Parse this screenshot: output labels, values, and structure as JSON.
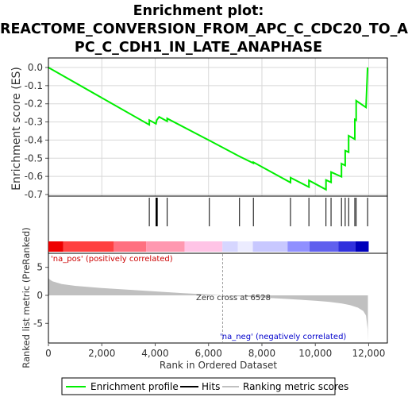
{
  "chart_data": {
    "type": "line",
    "title_lines": [
      "Enrichment plot:",
      "REACTOME_CONVERSION_FROM_APC_C_CDC20_TO_A",
      "PC_C_CDH1_IN_LATE_ANAPHASE"
    ],
    "es_panel": {
      "ylabel": "Enrichment score (ES)",
      "ylim": [
        -0.7,
        0.0
      ],
      "yticks": [
        "0.0",
        "-0.1",
        "-0.2",
        "-0.3",
        "-0.4",
        "-0.5",
        "-0.6",
        "-0.7"
      ],
      "ytick_values": [
        0.0,
        -0.1,
        -0.2,
        -0.3,
        -0.4,
        -0.5,
        -0.6,
        -0.7
      ],
      "grid": true,
      "line_color": "#00ee00",
      "series": [
        {
          "name": "Enrichment profile",
          "x": [
            0,
            3780,
            3780,
            4030,
            4060,
            4060,
            4150,
            4450,
            4450,
            6030,
            6030,
            7160,
            7160,
            7680,
            7680,
            9070,
            9070,
            9760,
            9760,
            10400,
            10400,
            10590,
            10590,
            10980,
            10980,
            11120,
            11120,
            11250,
            11250,
            11480,
            11480,
            11530,
            11530,
            11900,
            11900,
            11960
          ],
          "y": [
            0.0,
            -0.316,
            -0.29,
            -0.31,
            -0.29,
            -0.29,
            -0.272,
            -0.296,
            -0.281,
            -0.402,
            -0.402,
            -0.49,
            -0.49,
            -0.527,
            -0.522,
            -0.634,
            -0.607,
            -0.659,
            -0.622,
            -0.673,
            -0.62,
            -0.633,
            -0.576,
            -0.602,
            -0.53,
            -0.54,
            -0.458,
            -0.467,
            -0.376,
            -0.395,
            -0.286,
            -0.29,
            -0.183,
            -0.22,
            -0.22,
            0.0
          ]
        }
      ]
    },
    "hits": {
      "name": "Hits",
      "positions": [
        3780,
        4030,
        4060,
        4080,
        4450,
        6030,
        7160,
        7680,
        9070,
        9760,
        10400,
        10590,
        10980,
        11120,
        11250,
        11480,
        11530,
        11960
      ]
    },
    "ranking_bar": {
      "label_pos": "'na_pos' (positively correlated)",
      "label_neg": "'na_neg' (negatively correlated)",
      "label_pos_color": "#cc0000",
      "label_neg_color": "#0000cc",
      "segments": [
        {
          "from": 0,
          "to": 560,
          "color": "#ee0000"
        },
        {
          "from": 560,
          "to": 2450,
          "color": "#ff4040"
        },
        {
          "from": 2450,
          "to": 3660,
          "color": "#ff7080"
        },
        {
          "from": 3660,
          "to": 5100,
          "color": "#ff98b0"
        },
        {
          "from": 5100,
          "to": 6520,
          "color": "#ffc4e6"
        },
        {
          "from": 6520,
          "to": 7100,
          "color": "#d6d6ff"
        },
        {
          "from": 7100,
          "to": 7660,
          "color": "#ececff"
        },
        {
          "from": 7660,
          "to": 8960,
          "color": "#c8c8ff"
        },
        {
          "from": 8960,
          "to": 9780,
          "color": "#9090ff"
        },
        {
          "from": 9780,
          "to": 10870,
          "color": "#6060ee"
        },
        {
          "from": 10870,
          "to": 11500,
          "color": "#3030dd"
        },
        {
          "from": 11500,
          "to": 12000,
          "color": "#0000bb"
        }
      ]
    },
    "metric_panel": {
      "ylabel": "Ranked list metric (PreRanked)",
      "ylim": [
        -8.5,
        7.5
      ],
      "yticks": [
        "5",
        "0",
        "-5"
      ],
      "ytick_values": [
        5,
        0,
        -5
      ],
      "zero_cross_label": "Zero cross at 6528",
      "zero_cross": 6528,
      "fill_color": "#c0c0c0",
      "x": [
        0,
        30,
        150,
        500,
        1000,
        2000,
        3000,
        4000,
        5000,
        6000,
        6528,
        7000,
        8000,
        9000,
        10000,
        10500,
        11000,
        11300,
        11600,
        11800,
        11900,
        11960,
        11970
      ],
      "values": [
        3.3,
        2.9,
        2.5,
        2.0,
        1.7,
        1.3,
        1.0,
        0.7,
        0.4,
        0.15,
        0.0,
        -0.15,
        -0.4,
        -0.65,
        -0.95,
        -1.15,
        -1.45,
        -1.75,
        -2.2,
        -2.8,
        -3.6,
        -6.0,
        -8.3
      ]
    },
    "xaxis": {
      "label": "Rank in Ordered Dataset",
      "ticks": [
        "0",
        "2,000",
        "4,000",
        "6,000",
        "8,000",
        "10,000",
        "12,000"
      ],
      "tick_values": [
        0,
        2000,
        4000,
        6000,
        8000,
        10000,
        12000
      ],
      "xlim": [
        0,
        12700
      ]
    },
    "legend": {
      "placement": "bottom",
      "items": [
        {
          "label": "Enrichment profile",
          "color": "#00ee00"
        },
        {
          "label": "Hits",
          "color": "#000000"
        },
        {
          "label": "Ranking metric scores",
          "color": "#c0c0c0"
        }
      ]
    }
  }
}
